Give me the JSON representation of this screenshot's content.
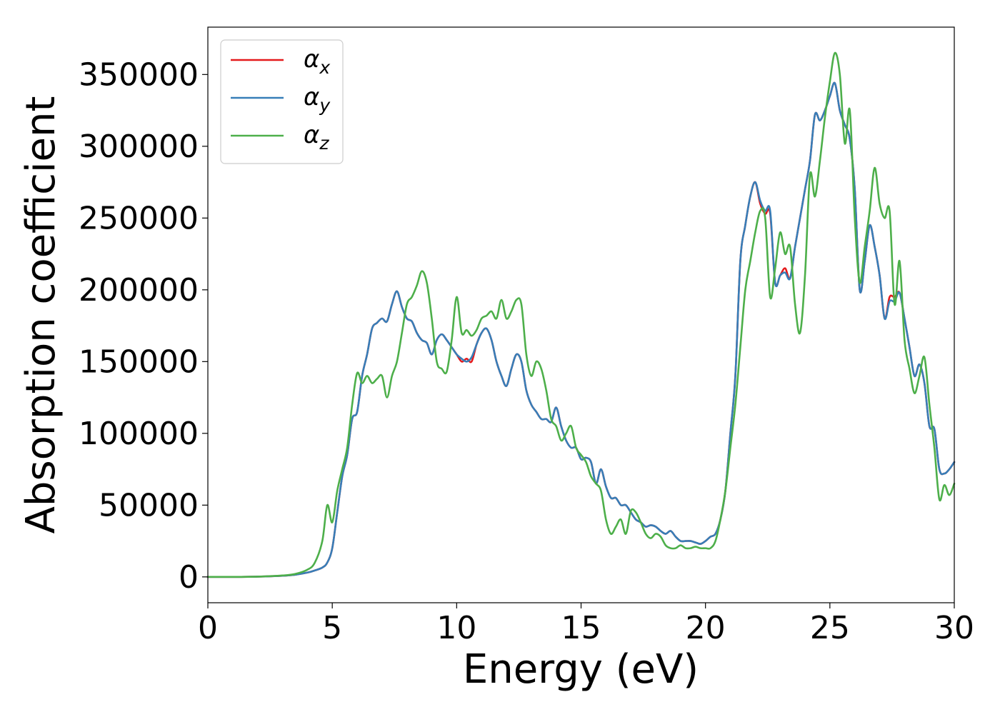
{
  "chart_data": {
    "type": "line",
    "title": "",
    "xlabel": "Energy (eV)",
    "ylabel": "Absorption coefficient",
    "xlim": [
      0,
      30
    ],
    "ylim": [
      -18000,
      383000
    ],
    "xticks": [
      0,
      5,
      10,
      15,
      20,
      25,
      30
    ],
    "yticks": [
      0,
      50000,
      100000,
      150000,
      200000,
      250000,
      300000,
      350000
    ],
    "grid": false,
    "legend_position": "top-left",
    "x": [
      0,
      1,
      2,
      3,
      3.5,
      4,
      4.3,
      4.6,
      4.8,
      5,
      5.2,
      5.4,
      5.6,
      5.8,
      6,
      6.2,
      6.4,
      6.6,
      6.8,
      7,
      7.2,
      7.4,
      7.6,
      7.8,
      8,
      8.2,
      8.4,
      8.6,
      8.8,
      9,
      9.2,
      9.4,
      9.6,
      9.8,
      10,
      10.2,
      10.4,
      10.6,
      10.8,
      11,
      11.2,
      11.4,
      11.6,
      11.8,
      12,
      12.2,
      12.4,
      12.6,
      12.8,
      13,
      13.2,
      13.4,
      13.6,
      13.8,
      14,
      14.2,
      14.4,
      14.6,
      14.8,
      15,
      15.2,
      15.4,
      15.6,
      15.8,
      16,
      16.2,
      16.4,
      16.6,
      16.8,
      17,
      17.2,
      17.4,
      17.6,
      17.8,
      18,
      18.2,
      18.4,
      18.6,
      18.8,
      19,
      19.2,
      19.4,
      19.6,
      19.8,
      20,
      20.2,
      20.4,
      20.6,
      20.8,
      21,
      21.2,
      21.4,
      21.6,
      21.8,
      22,
      22.2,
      22.4,
      22.6,
      22.8,
      23,
      23.2,
      23.4,
      23.6,
      23.8,
      24,
      24.2,
      24.4,
      24.6,
      24.8,
      25,
      25.2,
      25.4,
      25.6,
      25.8,
      26,
      26.2,
      26.4,
      26.6,
      26.8,
      27,
      27.2,
      27.4,
      27.6,
      27.8,
      28,
      28.2,
      28.4,
      28.6,
      28.8,
      29,
      29.2,
      29.4,
      29.6,
      29.8,
      30
    ],
    "series": [
      {
        "name": "αx",
        "color": "#e41a1c",
        "values": [
          0,
          0,
          200,
          800,
          1500,
          3000,
          4500,
          6500,
          10000,
          20000,
          45000,
          70000,
          85000,
          110000,
          115000,
          140000,
          155000,
          173000,
          177000,
          180000,
          178000,
          190000,
          199000,
          188000,
          180000,
          178000,
          170000,
          165000,
          163000,
          155000,
          165000,
          169000,
          165000,
          160000,
          155000,
          150000,
          152000,
          150000,
          162000,
          170000,
          173000,
          165000,
          150000,
          140000,
          133000,
          145000,
          155000,
          150000,
          130000,
          120000,
          115000,
          110000,
          110000,
          108000,
          118000,
          105000,
          95000,
          90000,
          90000,
          82000,
          83000,
          80000,
          65000,
          75000,
          63000,
          55000,
          55000,
          50000,
          50000,
          45000,
          40000,
          38000,
          35000,
          36000,
          35000,
          32000,
          30000,
          32000,
          28000,
          25000,
          25000,
          25000,
          24000,
          23000,
          25000,
          28000,
          30000,
          40000,
          60000,
          100000,
          140000,
          220000,
          245000,
          265000,
          275000,
          260000,
          253000,
          253000,
          205000,
          210000,
          215000,
          208000,
          230000,
          250000,
          270000,
          290000,
          322000,
          318000,
          325000,
          335000,
          344000,
          325000,
          315000,
          305000,
          270000,
          200000,
          220000,
          245000,
          230000,
          210000,
          180000,
          195000,
          195000,
          198000,
          180000,
          160000,
          140000,
          148000,
          135000,
          105000,
          103000,
          75000,
          72000,
          75000,
          80000
        ]
      },
      {
        "name": "αy",
        "color": "#377eb8",
        "values": [
          0,
          0,
          200,
          800,
          1500,
          3000,
          4500,
          6500,
          10000,
          20000,
          45000,
          70000,
          85000,
          110000,
          115000,
          140000,
          155000,
          173000,
          177000,
          180000,
          178000,
          190000,
          199000,
          188000,
          180000,
          178000,
          170000,
          165000,
          163000,
          155000,
          165000,
          169000,
          165000,
          160000,
          155000,
          152000,
          150000,
          153000,
          162000,
          170000,
          173000,
          165000,
          150000,
          140000,
          133000,
          145000,
          155000,
          150000,
          130000,
          120000,
          115000,
          110000,
          110000,
          108000,
          118000,
          105000,
          95000,
          90000,
          90000,
          82000,
          83000,
          80000,
          65000,
          75000,
          63000,
          55000,
          55000,
          50000,
          50000,
          45000,
          40000,
          38000,
          35000,
          36000,
          35000,
          32000,
          30000,
          32000,
          28000,
          25000,
          25000,
          25000,
          24000,
          23000,
          25000,
          28000,
          30000,
          40000,
          60000,
          100000,
          140000,
          220000,
          245000,
          265000,
          275000,
          262000,
          255000,
          255000,
          205000,
          210000,
          212000,
          208000,
          230000,
          250000,
          270000,
          290000,
          322000,
          318000,
          325000,
          335000,
          344000,
          325000,
          315000,
          305000,
          270000,
          200000,
          220000,
          245000,
          230000,
          210000,
          180000,
          192000,
          192000,
          198000,
          180000,
          160000,
          140000,
          148000,
          135000,
          105000,
          103000,
          75000,
          72000,
          75000,
          80000
        ]
      },
      {
        "name": "αz",
        "color": "#4daf4a",
        "values": [
          0,
          0,
          200,
          1000,
          2000,
          5000,
          10000,
          25000,
          50000,
          38000,
          60000,
          75000,
          90000,
          120000,
          142000,
          135000,
          140000,
          135000,
          138000,
          140000,
          125000,
          140000,
          150000,
          170000,
          190000,
          195000,
          203000,
          213000,
          205000,
          180000,
          150000,
          145000,
          143000,
          165000,
          195000,
          170000,
          172000,
          168000,
          172000,
          180000,
          182000,
          185000,
          180000,
          193000,
          180000,
          185000,
          193000,
          190000,
          155000,
          140000,
          150000,
          145000,
          130000,
          110000,
          105000,
          95000,
          100000,
          105000,
          90000,
          85000,
          80000,
          70000,
          65000,
          60000,
          40000,
          30000,
          35000,
          40000,
          30000,
          46000,
          45000,
          38000,
          30000,
          27000,
          30000,
          28000,
          22000,
          20000,
          20000,
          22000,
          20000,
          20000,
          21000,
          20000,
          20000,
          20000,
          25000,
          40000,
          60000,
          90000,
          120000,
          160000,
          200000,
          220000,
          240000,
          255000,
          250000,
          195000,
          215000,
          240000,
          225000,
          230000,
          190000,
          170000,
          210000,
          280000,
          265000,
          290000,
          320000,
          345000,
          365000,
          350000,
          302000,
          325000,
          250000,
          205000,
          230000,
          255000,
          285000,
          260000,
          250000,
          255000,
          190000,
          220000,
          165000,
          145000,
          128000,
          140000,
          153000,
          120000,
          90000,
          54000,
          64000,
          57000,
          65000
        ]
      }
    ]
  }
}
